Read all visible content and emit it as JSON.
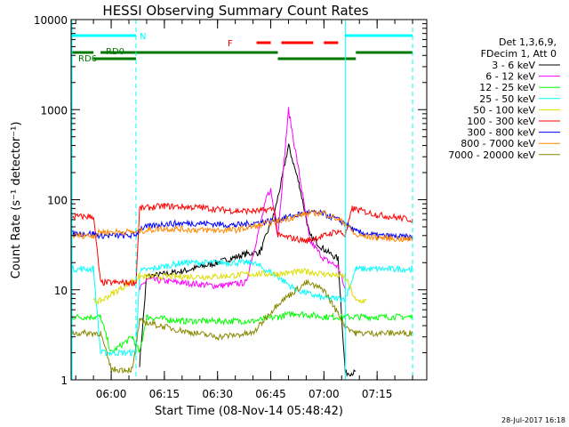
{
  "chart_data": {
    "type": "line",
    "title": "HESSI Observing Summary Count Rates",
    "xlabel": "Start Time (08-Nov-14 05:48:42)",
    "ylabel": "Count Rate (s⁻¹ detector⁻¹)",
    "y_scale": "log",
    "xlim": [
      "05:48:42",
      "07:29:00"
    ],
    "ylim": [
      1,
      10000
    ],
    "x_ticks": [
      "06:00",
      "06:15",
      "06:30",
      "06:45",
      "07:00",
      "07:15"
    ],
    "y_ticks": [
      "1",
      "10",
      "100",
      "1000",
      "10000"
    ],
    "date_stamp": "28-Jul-2017 16:18",
    "legend_header": [
      "Det 1,3,6,9,",
      "FDecim 1, Att 0"
    ],
    "legend_placement": "right, outside plot",
    "series": [
      {
        "name": "3 - 6 keV",
        "color": "#000000",
        "points": [
          [
            "06:08",
            1.5
          ],
          [
            "06:10",
            14
          ],
          [
            "06:20",
            16
          ],
          [
            "06:30",
            20
          ],
          [
            "06:38",
            25
          ],
          [
            "06:42",
            26
          ],
          [
            "06:46",
            70
          ],
          [
            "06:48",
            160
          ],
          [
            "06:50",
            400
          ],
          [
            "06:53",
            150
          ],
          [
            "06:56",
            40
          ],
          [
            "07:00",
            28
          ],
          [
            "07:04",
            22
          ],
          [
            "07:06",
            1.2
          ],
          [
            "07:09",
            1.2
          ]
        ]
      },
      {
        "name": "6 - 12 keV",
        "color": "#ff00ff",
        "points": [
          [
            "06:08",
            10
          ],
          [
            "06:10",
            13
          ],
          [
            "06:20",
            12
          ],
          [
            "06:30",
            11
          ],
          [
            "06:38",
            12
          ],
          [
            "06:44",
            110
          ],
          [
            "06:45",
            130
          ],
          [
            "06:47",
            40
          ],
          [
            "06:50",
            1000
          ],
          [
            "06:53",
            200
          ],
          [
            "06:56",
            35
          ],
          [
            "07:00",
            22
          ],
          [
            "07:04",
            18
          ],
          [
            "07:06",
            10
          ]
        ]
      },
      {
        "name": "12 - 25 keV",
        "color": "#00ff00",
        "points": [
          [
            "05:48:42",
            5
          ],
          [
            "05:55",
            5
          ],
          [
            "05:57",
            5
          ],
          [
            "06:00",
            2
          ],
          [
            "06:06",
            3
          ],
          [
            "06:08",
            2
          ],
          [
            "06:10",
            5
          ],
          [
            "06:20",
            4.5
          ],
          [
            "06:30",
            4.5
          ],
          [
            "06:40",
            4.5
          ],
          [
            "06:47",
            5
          ],
          [
            "06:52",
            5.5
          ],
          [
            "07:00",
            5
          ],
          [
            "07:06",
            5
          ],
          [
            "07:09",
            5
          ],
          [
            "07:20",
            5
          ],
          [
            "07:25",
            5
          ]
        ]
      },
      {
        "name": "25 - 50 keV",
        "color": "#00ffff",
        "points": [
          [
            "05:48:42",
            17
          ],
          [
            "05:55",
            17
          ],
          [
            "05:57",
            2
          ],
          [
            "06:07",
            2
          ],
          [
            "06:08",
            16
          ],
          [
            "06:20",
            20
          ],
          [
            "06:30",
            20
          ],
          [
            "06:40",
            20
          ],
          [
            "06:47",
            14
          ],
          [
            "06:52",
            10
          ],
          [
            "07:00",
            8
          ],
          [
            "07:06",
            8
          ],
          [
            "07:09",
            17
          ],
          [
            "07:20",
            17
          ],
          [
            "07:25",
            17
          ]
        ]
      },
      {
        "name": "50 - 100 keV",
        "color": "#dddd00",
        "points": [
          [
            "05:55",
            7.5
          ],
          [
            "05:57",
            7.5
          ],
          [
            "06:08",
            14
          ],
          [
            "06:20",
            14
          ],
          [
            "06:30",
            14
          ],
          [
            "06:40",
            15
          ],
          [
            "06:47",
            15
          ],
          [
            "06:55",
            16
          ],
          [
            "07:00",
            15
          ],
          [
            "07:06",
            14
          ],
          [
            "07:09",
            7.5
          ],
          [
            "07:12",
            7.5
          ]
        ]
      },
      {
        "name": "100 - 300 keV",
        "color": "#ff0000",
        "points": [
          [
            "05:48:42",
            65
          ],
          [
            "05:55",
            65
          ],
          [
            "05:57",
            12
          ],
          [
            "06:07",
            12
          ],
          [
            "06:08",
            80
          ],
          [
            "06:15",
            85
          ],
          [
            "06:25",
            82
          ],
          [
            "06:35",
            75
          ],
          [
            "06:42",
            75
          ],
          [
            "06:46",
            80
          ],
          [
            "06:47",
            40
          ],
          [
            "06:55",
            35
          ],
          [
            "07:00",
            40
          ],
          [
            "07:04",
            45
          ],
          [
            "07:06",
            40
          ],
          [
            "07:08",
            80
          ],
          [
            "07:15",
            68
          ],
          [
            "07:25",
            60
          ]
        ]
      },
      {
        "name": "300 - 800 keV",
        "color": "#0000ff",
        "points": [
          [
            "05:48:42",
            42
          ],
          [
            "05:55",
            42
          ],
          [
            "05:57",
            40
          ],
          [
            "06:07",
            40
          ],
          [
            "06:08",
            48
          ],
          [
            "06:15",
            54
          ],
          [
            "06:25",
            55
          ],
          [
            "06:35",
            52
          ],
          [
            "06:42",
            56
          ],
          [
            "06:47",
            60
          ],
          [
            "06:55",
            72
          ],
          [
            "07:00",
            70
          ],
          [
            "07:06",
            55
          ],
          [
            "07:09",
            44
          ],
          [
            "07:15",
            40
          ],
          [
            "07:25",
            38
          ]
        ]
      },
      {
        "name": "800 - 7000 keV",
        "color": "#ff8800",
        "points": [
          [
            "05:48:42",
            40
          ],
          [
            "05:55",
            40
          ],
          [
            "05:57",
            44
          ],
          [
            "06:07",
            44
          ],
          [
            "06:08",
            45
          ],
          [
            "06:15",
            48
          ],
          [
            "06:25",
            46
          ],
          [
            "06:35",
            46
          ],
          [
            "06:42",
            52
          ],
          [
            "06:47",
            58
          ],
          [
            "06:55",
            70
          ],
          [
            "07:00",
            72
          ],
          [
            "07:06",
            55
          ],
          [
            "07:09",
            40
          ],
          [
            "07:15",
            38
          ],
          [
            "07:25",
            36
          ]
        ]
      },
      {
        "name": "7000 - 20000 keV",
        "color": "#888800",
        "points": [
          [
            "05:48:42",
            3.3
          ],
          [
            "05:55",
            3.3
          ],
          [
            "05:57",
            3.3
          ],
          [
            "06:00",
            1.3
          ],
          [
            "06:06",
            1.3
          ],
          [
            "06:08",
            4.5
          ],
          [
            "06:20",
            3.5
          ],
          [
            "06:30",
            3
          ],
          [
            "06:40",
            3.3
          ],
          [
            "06:47",
            7
          ],
          [
            "06:55",
            12
          ],
          [
            "07:00",
            10
          ],
          [
            "07:06",
            4
          ],
          [
            "07:09",
            3.3
          ],
          [
            "07:20",
            3.3
          ],
          [
            "07:25",
            3.3
          ]
        ]
      }
    ],
    "annotations": {
      "attenuator_labels": [
        "N",
        "RD0",
        "RD6",
        "F"
      ],
      "n_bars": [
        [
          "05:48:42",
          "06:07"
        ],
        [
          "07:06",
          "07:25"
        ]
      ],
      "rd0_bars": [
        [
          "05:48:42",
          "05:55"
        ],
        [
          "05:57",
          "06:08"
        ],
        [
          "06:08",
          "06:47"
        ],
        [
          "07:09",
          "07:25"
        ]
      ],
      "rd6_bars": [
        [
          "05:55",
          "06:07"
        ],
        [
          "06:47",
          "07:09"
        ]
      ],
      "f_bars": [
        [
          "06:41",
          "06:45"
        ],
        [
          "06:48",
          "06:57"
        ],
        [
          "07:00",
          "07:04"
        ]
      ],
      "dashed_cyan_vlines": [
        "06:07",
        "07:25"
      ],
      "solid_cyan_vlines": [
        "05:48:42",
        "07:06"
      ]
    }
  }
}
